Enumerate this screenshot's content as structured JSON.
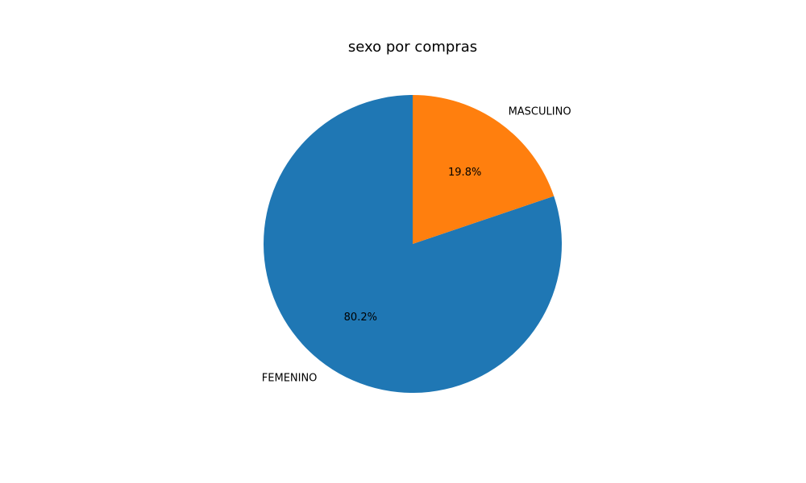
{
  "chart_data": {
    "type": "pie",
    "title": "sexo por compras",
    "categories": [
      "FEMENINO",
      "MASCULINO"
    ],
    "values": [
      80.2,
      19.8
    ],
    "percent_labels": [
      "80.2%",
      "19.8%"
    ],
    "colors": [
      "#1f77b4",
      "#ff7f0e"
    ],
    "start_angle_deg": 90,
    "direction": "clockwise-from-top for MASCULINO, FEMENINO fills remainder",
    "legend": "none"
  }
}
